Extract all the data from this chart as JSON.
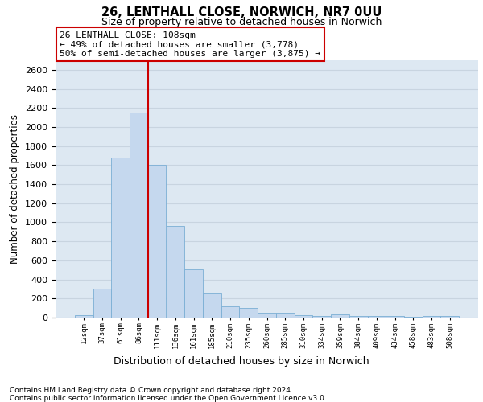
{
  "title": "26, LENTHALL CLOSE, NORWICH, NR7 0UU",
  "subtitle": "Size of property relative to detached houses in Norwich",
  "xlabel": "Distribution of detached houses by size in Norwich",
  "ylabel": "Number of detached properties",
  "categories": [
    "12sqm",
    "37sqm",
    "61sqm",
    "86sqm",
    "111sqm",
    "136sqm",
    "161sqm",
    "185sqm",
    "210sqm",
    "235sqm",
    "260sqm",
    "285sqm",
    "310sqm",
    "334sqm",
    "359sqm",
    "384sqm",
    "409sqm",
    "434sqm",
    "458sqm",
    "483sqm",
    "508sqm"
  ],
  "values": [
    25,
    300,
    1675,
    2150,
    1600,
    960,
    505,
    250,
    120,
    100,
    50,
    50,
    28,
    20,
    30,
    18,
    18,
    18,
    5,
    18,
    18
  ],
  "bar_color": "#c5d8ee",
  "bar_edge_color": "#7aaed4",
  "vline_position": 3.5,
  "vline_color": "#cc0000",
  "annotation_line1": "26 LENTHALL CLOSE: 108sqm",
  "annotation_line2": "← 49% of detached houses are smaller (3,778)",
  "annotation_line3": "50% of semi-detached houses are larger (3,875) →",
  "annotation_box_facecolor": "white",
  "annotation_box_edgecolor": "#cc0000",
  "ylim_max": 2700,
  "ytick_step": 200,
  "grid_color": "#c8d4e0",
  "plot_bg_color": "#dde8f2",
  "title_fontsize": 10.5,
  "subtitle_fontsize": 9,
  "footnote1": "Contains HM Land Registry data © Crown copyright and database right 2024.",
  "footnote2": "Contains public sector information licensed under the Open Government Licence v3.0."
}
